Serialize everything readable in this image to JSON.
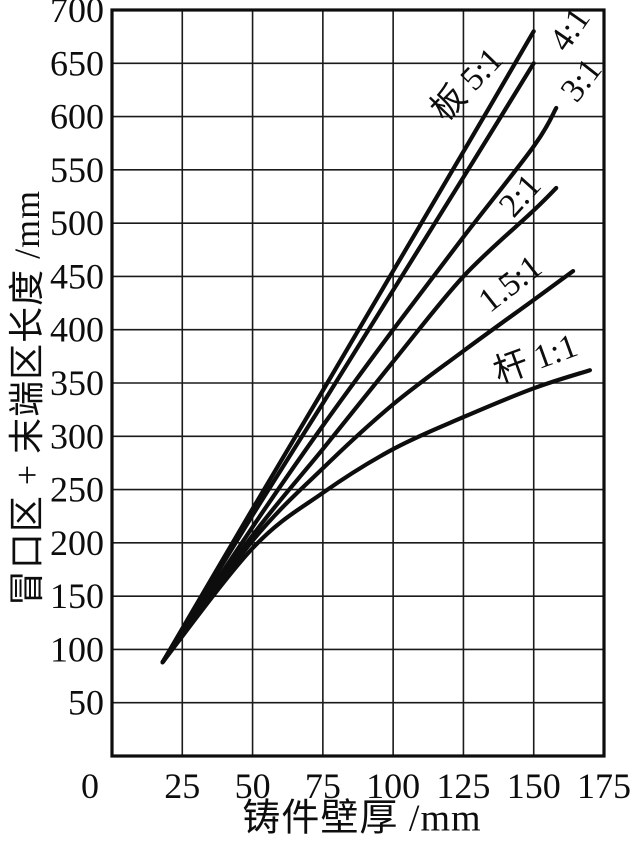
{
  "page": {
    "background": "#ffffff",
    "ink_color": "#0d0d0d"
  },
  "chart_data": {
    "type": "line",
    "title": "",
    "xlabel": "铸件壁厚 /mm",
    "ylabel": "冒口区 + 末端区长度 /mm",
    "xlim": [
      0,
      175
    ],
    "ylim": [
      0,
      700
    ],
    "x_ticks": [
      0,
      25,
      50,
      75,
      100,
      125,
      150,
      175
    ],
    "y_ticks": [
      0,
      50,
      100,
      150,
      200,
      250,
      300,
      350,
      400,
      450,
      500,
      550,
      600,
      650,
      700
    ],
    "y_tick_labels_shown": [
      50,
      100,
      150,
      200,
      250,
      300,
      350,
      400,
      450,
      500,
      550,
      600,
      650,
      700
    ],
    "grid": true,
    "legend_position": "inline-labels-rotated",
    "line_color": "#0d0d0d",
    "grid_color": "#1a1a1a",
    "series": [
      {
        "id": "plate-5-1",
        "name": "板 5:1",
        "points": [
          [
            18,
            88
          ],
          [
            50,
            232
          ],
          [
            75,
            343
          ],
          [
            100,
            455
          ],
          [
            125,
            567
          ],
          [
            150,
            680
          ]
        ],
        "label": {
          "text": "板 5:1",
          "x": 129,
          "y": 623,
          "rotate": -46
        }
      },
      {
        "id": "4-1",
        "name": "4:1",
        "points": [
          [
            18,
            88
          ],
          [
            50,
            226
          ],
          [
            75,
            331
          ],
          [
            100,
            437
          ],
          [
            125,
            543
          ],
          [
            150,
            650
          ]
        ],
        "label": {
          "text": "4:1",
          "x": 166,
          "y": 676,
          "rotate": -55
        }
      },
      {
        "id": "3-1",
        "name": "3:1",
        "points": [
          [
            18,
            88
          ],
          [
            50,
            215
          ],
          [
            75,
            310
          ],
          [
            100,
            400
          ],
          [
            125,
            487
          ],
          [
            150,
            572
          ],
          [
            158,
            608
          ]
        ],
        "label": {
          "text": "3:1",
          "x": 170,
          "y": 628,
          "rotate": -52
        }
      },
      {
        "id": "2-1",
        "name": "2:1",
        "points": [
          [
            18,
            88
          ],
          [
            50,
            207
          ],
          [
            75,
            288
          ],
          [
            100,
            370
          ],
          [
            125,
            450
          ],
          [
            150,
            512
          ],
          [
            158,
            533
          ]
        ],
        "label": {
          "text": "2:1",
          "x": 148,
          "y": 519,
          "rotate": -48
        }
      },
      {
        "id": "1-5-1",
        "name": "1.5:1",
        "points": [
          [
            18,
            88
          ],
          [
            50,
            202
          ],
          [
            75,
            270
          ],
          [
            100,
            330
          ],
          [
            125,
            380
          ],
          [
            150,
            428
          ],
          [
            164,
            455
          ]
        ],
        "label": {
          "text": "1.5:1",
          "x": 144,
          "y": 435,
          "rotate": -38
        }
      },
      {
        "id": "rod-1-1",
        "name": "杆 1:1",
        "points": [
          [
            18,
            88
          ],
          [
            50,
            195
          ],
          [
            75,
            247
          ],
          [
            100,
            288
          ],
          [
            125,
            318
          ],
          [
            150,
            345
          ],
          [
            170,
            362
          ]
        ],
        "label": {
          "text": "杆 1:1",
          "x": 152,
          "y": 363,
          "rotate": -20
        }
      }
    ]
  }
}
